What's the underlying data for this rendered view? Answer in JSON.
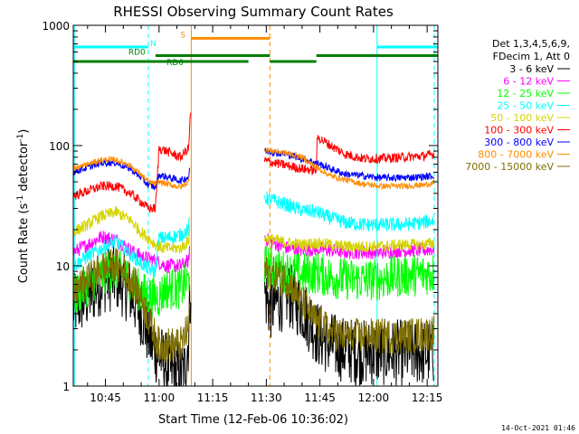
{
  "chart_data": {
    "type": "line",
    "title": "RHESSI Observing Summary Count Rates",
    "xlabel": "Start Time (12-Feb-06 10:36:02)",
    "ylabel_main": "Count Rate (s",
    "ylabel_sup1": "-1",
    "ylabel_mid": " detector",
    "ylabel_sup2": "-1",
    "ylabel_end": ")",
    "footer": "14-Oct-2021 01:46",
    "x_range_min": [
      36.0,
      138.0
    ],
    "y_scale": "log",
    "ylim": [
      1,
      1000
    ],
    "x_ticks": [
      {
        "t": 45,
        "label": "10:45"
      },
      {
        "t": 60,
        "label": "11:00"
      },
      {
        "t": 75,
        "label": "11:15"
      },
      {
        "t": 90,
        "label": "11:30"
      },
      {
        "t": 105,
        "label": "11:45"
      },
      {
        "t": 120,
        "label": "12:00"
      },
      {
        "t": 135,
        "label": "12:15"
      }
    ],
    "y_ticks": [
      {
        "v": 1,
        "label": "1"
      },
      {
        "v": 10,
        "label": "10"
      },
      {
        "v": 100,
        "label": "100"
      },
      {
        "v": 1000,
        "label": "1000"
      }
    ],
    "legend_header": [
      "Det 1,3,4,5,6,9,",
      "FDecim 1, Att 0"
    ],
    "legend_placement": "right",
    "series": [
      {
        "name": "3 - 6 keV",
        "color": "#000000",
        "anchors": [
          [
            36,
            4.5
          ],
          [
            40,
            5.5
          ],
          [
            44,
            7.5
          ],
          [
            48,
            8
          ],
          [
            52,
            6
          ],
          [
            55,
            4
          ],
          [
            58,
            2.2
          ],
          [
            60,
            1.8
          ],
          [
            62,
            1.5
          ],
          [
            64,
            1.3
          ],
          [
            67,
            1.3
          ],
          [
            68.3,
            2.5
          ],
          [
            68.6,
            5
          ],
          [
            68.9,
            7
          ]
        ],
        "anchors2": [
          [
            89.5,
            6
          ],
          [
            91,
            4.5
          ],
          [
            96,
            5.8
          ],
          [
            100,
            4.5
          ],
          [
            104,
            2.8
          ],
          [
            108,
            2.2
          ],
          [
            112,
            2
          ],
          [
            117,
            1.9
          ],
          [
            122,
            1.9
          ],
          [
            128,
            1.9
          ],
          [
            134,
            1.9
          ],
          [
            137,
            1.9
          ]
        ],
        "noise": 0.28
      },
      {
        "name": "6 - 12 keV",
        "color": "#ff00ff",
        "anchors": [
          [
            36,
            13
          ],
          [
            40,
            15
          ],
          [
            44,
            17.5
          ],
          [
            48,
            16.5
          ],
          [
            52,
            13.5
          ],
          [
            55,
            12
          ],
          [
            57,
            11.5
          ],
          [
            59,
            11
          ],
          [
            62,
            10
          ],
          [
            66,
            10
          ],
          [
            68.3,
            11
          ],
          [
            68.6,
            16
          ]
        ],
        "anchors2": [
          [
            89.5,
            17
          ],
          [
            92,
            15.5
          ],
          [
            96,
            14
          ],
          [
            100,
            13.5
          ],
          [
            104,
            13.8
          ],
          [
            108,
            13.5
          ],
          [
            112,
            13
          ],
          [
            117,
            13
          ],
          [
            122,
            13
          ],
          [
            128,
            13.5
          ],
          [
            134,
            13.5
          ],
          [
            137,
            13.8
          ]
        ],
        "noise": 0.06
      },
      {
        "name": "12 - 25 keV",
        "color": "#00ff00",
        "anchors": [
          [
            36,
            5.5
          ],
          [
            40,
            7
          ],
          [
            44,
            8.5
          ],
          [
            48,
            9.5
          ],
          [
            52,
            7.5
          ],
          [
            55,
            6
          ],
          [
            58,
            5.5
          ],
          [
            60,
            5.5
          ],
          [
            62,
            6.5
          ],
          [
            66,
            6.5
          ],
          [
            68.3,
            7.5
          ],
          [
            68.6,
            11
          ]
        ],
        "anchors2": [
          [
            89.5,
            10
          ],
          [
            92,
            9.5
          ],
          [
            96,
            8.8
          ],
          [
            100,
            8.5
          ],
          [
            104,
            8.8
          ],
          [
            108,
            8
          ],
          [
            112,
            7.8
          ],
          [
            117,
            7.6
          ],
          [
            122,
            7.8
          ],
          [
            128,
            8.3
          ],
          [
            134,
            8.5
          ],
          [
            137,
            8.8
          ]
        ],
        "noise": 0.18
      },
      {
        "name": "25 - 50 keV",
        "color": "#00ffff",
        "anchors": [
          [
            36,
            10
          ],
          [
            40,
            12
          ],
          [
            44,
            14
          ],
          [
            48,
            16
          ],
          [
            52,
            12.5
          ],
          [
            55,
            10.5
          ],
          [
            57,
            9.5
          ],
          [
            59,
            9
          ],
          [
            60,
            17
          ],
          [
            62,
            17
          ],
          [
            66,
            18
          ],
          [
            68.3,
            20
          ],
          [
            68.6,
            26
          ]
        ],
        "anchors2": [
          [
            89.5,
            37
          ],
          [
            92,
            35
          ],
          [
            96,
            32
          ],
          [
            100,
            29
          ],
          [
            104,
            28
          ],
          [
            108,
            25
          ],
          [
            112,
            23
          ],
          [
            117,
            22
          ],
          [
            122,
            22
          ],
          [
            128,
            22
          ],
          [
            134,
            23
          ],
          [
            137,
            24
          ]
        ],
        "noise": 0.06
      },
      {
        "name": "50 - 100 keV",
        "color": "#d4d400",
        "anchors": [
          [
            36,
            19
          ],
          [
            40,
            22
          ],
          [
            44,
            26
          ],
          [
            48,
            28
          ],
          [
            52,
            24
          ],
          [
            55,
            19
          ],
          [
            57,
            17
          ],
          [
            59,
            15
          ],
          [
            61,
            14
          ],
          [
            62,
            14
          ],
          [
            66,
            14
          ],
          [
            68.3,
            16
          ],
          [
            68.6,
            23
          ]
        ],
        "anchors2": [
          [
            89.5,
            17
          ],
          [
            92,
            16.5
          ],
          [
            96,
            15.5
          ],
          [
            100,
            15
          ],
          [
            104,
            15.5
          ],
          [
            108,
            15
          ],
          [
            112,
            14.5
          ],
          [
            117,
            14.5
          ],
          [
            122,
            14.5
          ],
          [
            128,
            15
          ],
          [
            134,
            15
          ],
          [
            137,
            15.5
          ]
        ],
        "noise": 0.05
      },
      {
        "name": "100 - 300 keV",
        "color": "#ff0000",
        "anchors": [
          [
            36,
            38
          ],
          [
            40,
            42
          ],
          [
            44,
            46
          ],
          [
            48,
            46
          ],
          [
            52,
            40
          ],
          [
            55,
            34
          ],
          [
            57,
            30
          ],
          [
            59,
            30
          ],
          [
            60,
            95
          ],
          [
            62,
            90
          ],
          [
            66,
            80
          ],
          [
            68.3,
            95
          ],
          [
            68.6,
            150
          ],
          [
            68.9,
            200
          ]
        ],
        "anchors2": [
          [
            89.5,
            75
          ],
          [
            92,
            72
          ],
          [
            96,
            68
          ],
          [
            100,
            64
          ],
          [
            104,
            62
          ],
          [
            104.3,
            118
          ],
          [
            108,
            100
          ],
          [
            112,
            85
          ],
          [
            117,
            78
          ],
          [
            122,
            78
          ],
          [
            128,
            80
          ],
          [
            134,
            82
          ],
          [
            137,
            85
          ]
        ],
        "noise": 0.04
      },
      {
        "name": "300 - 800 keV",
        "color": "#0000ff",
        "anchors": [
          [
            36,
            60
          ],
          [
            40,
            66
          ],
          [
            44,
            72
          ],
          [
            48,
            72
          ],
          [
            52,
            64
          ],
          [
            55,
            54
          ],
          [
            57,
            47
          ],
          [
            59,
            45
          ],
          [
            60,
            57
          ],
          [
            62,
            55
          ],
          [
            66,
            51
          ],
          [
            68.3,
            55
          ],
          [
            68.6,
            70
          ]
        ],
        "anchors2": [
          [
            89.5,
            90
          ],
          [
            92,
            88
          ],
          [
            96,
            84
          ],
          [
            100,
            78
          ],
          [
            104,
            72
          ],
          [
            108,
            64
          ],
          [
            112,
            58
          ],
          [
            117,
            56
          ],
          [
            122,
            54
          ],
          [
            128,
            54
          ],
          [
            134,
            55
          ],
          [
            137,
            56
          ]
        ],
        "noise": 0.03
      },
      {
        "name": "800 - 7000 keV",
        "color": "#ff8c00",
        "anchors": [
          [
            36,
            64
          ],
          [
            40,
            70
          ],
          [
            44,
            76
          ],
          [
            48,
            76
          ],
          [
            52,
            68
          ],
          [
            55,
            57
          ],
          [
            57,
            50
          ],
          [
            59,
            48
          ],
          [
            60,
            50
          ],
          [
            62,
            48
          ],
          [
            66,
            45
          ],
          [
            68.3,
            50
          ],
          [
            68.6,
            65
          ]
        ],
        "anchors2": [
          [
            89.5,
            92
          ],
          [
            92,
            90
          ],
          [
            96,
            86
          ],
          [
            100,
            80
          ],
          [
            104,
            66
          ],
          [
            108,
            56
          ],
          [
            112,
            52
          ],
          [
            117,
            48
          ],
          [
            122,
            46
          ],
          [
            128,
            46
          ],
          [
            134,
            47
          ],
          [
            137,
            49
          ]
        ],
        "noise": 0.025
      },
      {
        "name": "7000 - 15000 keV",
        "color": "#7f6f00",
        "anchors": [
          [
            36,
            6
          ],
          [
            40,
            7.5
          ],
          [
            44,
            9.5
          ],
          [
            48,
            10
          ],
          [
            52,
            8
          ],
          [
            55,
            5.5
          ],
          [
            58,
            3
          ],
          [
            60,
            2.2
          ],
          [
            62,
            2.2
          ],
          [
            66,
            2.2
          ],
          [
            68.3,
            3
          ],
          [
            68.6,
            6
          ]
        ],
        "anchors2": [
          [
            89.5,
            9
          ],
          [
            92,
            8.5
          ],
          [
            96,
            7.5
          ],
          [
            100,
            5
          ],
          [
            104,
            3.4
          ],
          [
            108,
            2.8
          ],
          [
            112,
            2.6
          ],
          [
            117,
            2.6
          ],
          [
            122,
            2.6
          ],
          [
            128,
            2.6
          ],
          [
            134,
            2.7
          ],
          [
            137,
            2.8
          ]
        ],
        "noise": 0.15
      }
    ],
    "flags": [
      {
        "label": "N",
        "color": "#00ffff",
        "level": 660,
        "segments": [
          [
            36,
            57
          ]
        ]
      },
      {
        "label": "",
        "color": "#00ffff",
        "level": 660,
        "segments": [
          [
            121,
            138
          ]
        ]
      },
      {
        "label": "S",
        "color": "#ff8c00",
        "level": 780,
        "segments": [
          [
            69,
            91
          ]
        ]
      },
      {
        "label": "RD0",
        "color": "#007f00",
        "level": 560,
        "segments": [
          [
            59,
            91
          ],
          [
            104,
            138
          ]
        ]
      },
      {
        "label": "RD6",
        "color": "#007f00",
        "level": 500,
        "segments": [
          [
            36,
            85
          ],
          [
            91,
            104
          ]
        ]
      }
    ],
    "vlines": [
      {
        "t": 36.3,
        "color": "#00ffff",
        "style": "solid"
      },
      {
        "t": 57.0,
        "color": "#00ffff",
        "style": "dashed"
      },
      {
        "t": 69.0,
        "color": "#ff8c00",
        "style": "solid"
      },
      {
        "t": 91.0,
        "color": "#ff8c00",
        "style": "dashed"
      },
      {
        "t": 121.0,
        "color": "#00ffff",
        "style": "solid"
      },
      {
        "t": 137.0,
        "color": "#00ffff",
        "style": "dashed"
      }
    ]
  }
}
